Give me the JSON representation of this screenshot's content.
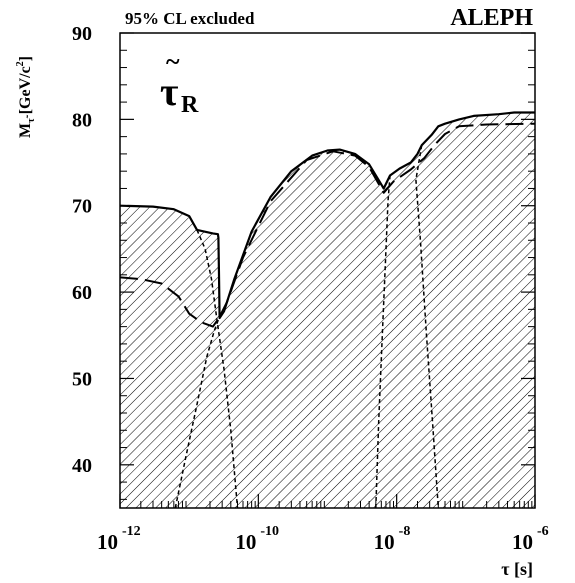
{
  "header": {
    "left_text": "95% CL excluded",
    "right_text": "ALEPH"
  },
  "chart_data": {
    "type": "area",
    "title": "",
    "annotation": {
      "base": "τ",
      "subscript": "R"
    },
    "xlabel": {
      "base": "τ",
      "unit": "[s]"
    },
    "ylabel": {
      "base": "M",
      "subscript": "τ̃",
      "unit": "[GeV/c",
      "unit_sup": "2",
      "unit_end": "]"
    },
    "x_scale": "log",
    "x_ticks": [
      {
        "base": "10",
        "exp": "-12"
      },
      {
        "base": "10",
        "exp": "-10"
      },
      {
        "base": "10",
        "exp": "-8"
      },
      {
        "base": "10",
        "exp": "-6"
      }
    ],
    "y_ticks": [
      "40",
      "50",
      "60",
      "70",
      "80",
      "90"
    ],
    "xlim": [
      1e-12,
      1e-06
    ],
    "ylim": [
      35,
      90
    ],
    "grid": false,
    "hatch": "diagonal",
    "series": [
      {
        "style": "solid",
        "points": [
          [
            1e-12,
            70.0
          ],
          [
            3e-12,
            69.9
          ],
          [
            6e-12,
            69.6
          ],
          [
            1e-11,
            68.8
          ],
          [
            1.3e-11,
            67.2
          ],
          [
            2.2e-11,
            66.8
          ],
          [
            2.6e-11,
            66.7
          ],
          [
            2.65e-11,
            66.3
          ],
          [
            2.7e-11,
            62.0
          ],
          [
            2.75e-11,
            57.0
          ],
          [
            3.2e-11,
            57.8
          ],
          [
            4.5e-11,
            61.5
          ],
          [
            8e-11,
            67.0
          ],
          [
            1.5e-10,
            71.0
          ],
          [
            3e-10,
            74.0
          ],
          [
            6e-10,
            75.8
          ],
          [
            1e-09,
            76.4
          ],
          [
            1.5e-09,
            76.5
          ],
          [
            2.5e-09,
            76.0
          ],
          [
            4e-09,
            74.8
          ],
          [
            6.5e-09,
            72.0
          ],
          [
            8e-09,
            73.5
          ],
          [
            1.1e-08,
            74.3
          ],
          [
            1.6e-08,
            75.0
          ],
          [
            2e-08,
            76.0
          ],
          [
            2.3e-08,
            77.0
          ],
          [
            3.2e-08,
            78.2
          ],
          [
            4e-08,
            79.2
          ],
          [
            5e-08,
            79.5
          ],
          [
            8e-08,
            80.0
          ],
          [
            1.3e-07,
            80.4
          ],
          [
            3e-07,
            80.6
          ],
          [
            5e-07,
            80.8
          ],
          [
            1e-06,
            80.8
          ]
        ]
      },
      {
        "style": "long-dash",
        "points": [
          [
            1e-12,
            61.7
          ],
          [
            2e-12,
            61.5
          ],
          [
            4e-12,
            61.0
          ],
          [
            7e-12,
            59.5
          ],
          [
            1e-11,
            57.5
          ],
          [
            1.5e-11,
            56.5
          ],
          [
            2.2e-11,
            56.0
          ],
          [
            2.7e-11,
            57.0
          ],
          [
            3.5e-11,
            58.8
          ],
          [
            6e-11,
            64.0
          ],
          [
            1.5e-10,
            70.5
          ],
          [
            5e-10,
            75.3
          ],
          [
            1.2e-09,
            76.3
          ],
          [
            2.5e-09,
            75.8
          ],
          [
            4e-09,
            74.5
          ],
          [
            6.5e-09,
            71.5
          ],
          [
            9e-09,
            72.8
          ],
          [
            1.6e-08,
            74.2
          ],
          [
            2.5e-08,
            75.5
          ],
          [
            3.5e-08,
            77.0
          ],
          [
            5e-08,
            78.3
          ],
          [
            8e-08,
            79.2
          ],
          [
            2e-07,
            79.4
          ],
          [
            1e-06,
            79.5
          ]
        ]
      },
      {
        "style": "dotted",
        "points": [
          [
            6.3e-12,
            35.0
          ],
          [
            9e-12,
            41.0
          ],
          [
            1.3e-11,
            47.0
          ],
          [
            1.8e-11,
            52.5
          ],
          [
            2.3e-11,
            55.5
          ],
          [
            2.7e-11,
            57.0
          ]
        ]
      },
      {
        "style": "dotted",
        "points": [
          [
            1.3e-11,
            67.2
          ],
          [
            1.7e-11,
            65.0
          ],
          [
            2.1e-11,
            61.5
          ],
          [
            2.5e-11,
            57.0
          ],
          [
            3.2e-11,
            51.0
          ],
          [
            4e-11,
            44.0
          ],
          [
            5e-11,
            35.0
          ]
        ]
      },
      {
        "style": "dotted",
        "points": [
          [
            5e-09,
            35.0
          ],
          [
            5.5e-09,
            45.0
          ],
          [
            6.2e-09,
            55.0
          ],
          [
            7e-09,
            65.0
          ],
          [
            7.5e-09,
            70.5
          ],
          [
            8e-09,
            73.5
          ]
        ]
      },
      {
        "style": "dotted",
        "points": [
          [
            2.3e-08,
            77.0
          ],
          [
            1.9e-08,
            73.0
          ],
          [
            2.2e-08,
            66.0
          ],
          [
            2.7e-08,
            55.0
          ],
          [
            3.3e-08,
            45.0
          ],
          [
            4e-08,
            35.0
          ]
        ]
      }
    ]
  }
}
